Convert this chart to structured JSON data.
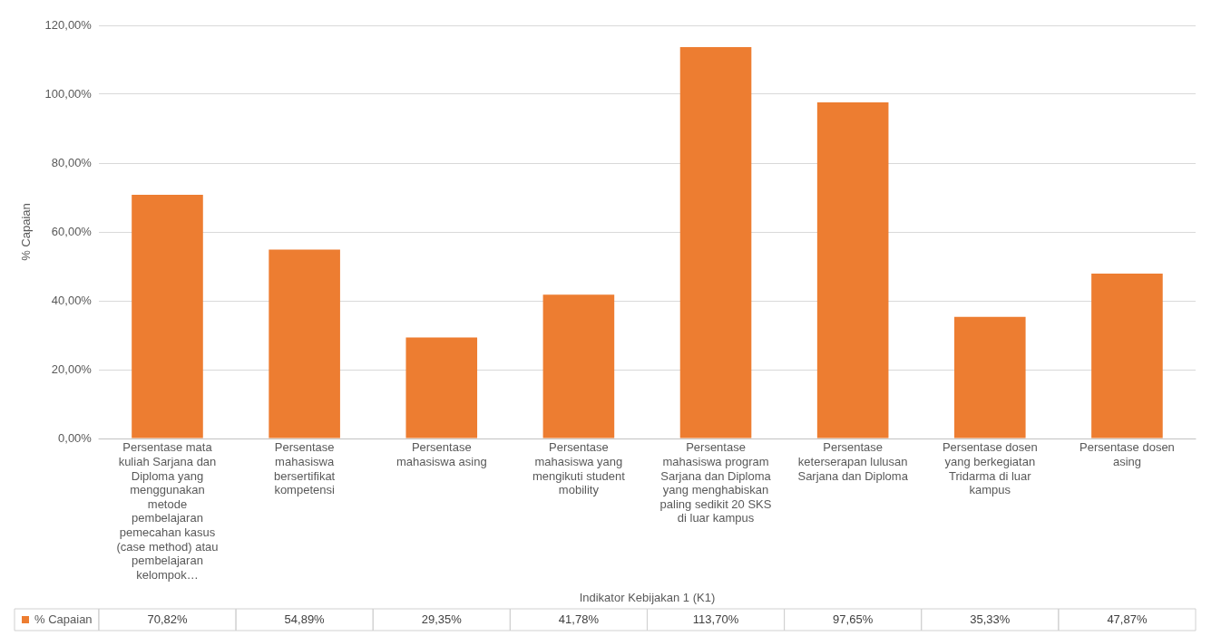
{
  "chart_data": {
    "type": "bar",
    "ylabel": "% Capaian",
    "annotations": [
      "Indikator Kebijakan 1 (K1)"
    ],
    "categories": [
      "Persentase mata kuliah Sarjana dan Diploma yang menggunakan metode pembelajaran pemecahan kasus (case method) atau pembelajaran kelompok…",
      "Persentase mahasiswa bersertifikat kompetensi",
      "Persentase mahasiswa asing",
      "Persentase mahasiswa yang mengikuti student mobility",
      "Persentase mahasiswa program Sarjana dan Diploma yang menghabiskan paling sedikit 20 SKS di luar kampus",
      "Persentase keterserapan lulusan Sarjana dan Diploma",
      "Persentase dosen yang berkegiatan Tridarma di luar kampus",
      "Persentase dosen asing"
    ],
    "series": [
      {
        "name": "% Capaian",
        "color": "#ed7d31",
        "values": [
          70.82,
          54.89,
          29.35,
          41.78,
          113.7,
          97.65,
          35.33,
          47.87
        ],
        "value_labels": [
          "70,82%",
          "54,89%",
          "29,35%",
          "41,78%",
          "113,70%",
          "97,65%",
          "35,33%",
          "47,87%"
        ]
      }
    ],
    "ylim": [
      0,
      120
    ],
    "yticks": [
      {
        "value": 0,
        "label": "0,00%"
      },
      {
        "value": 20,
        "label": "20,00%"
      },
      {
        "value": 40,
        "label": "40,00%"
      },
      {
        "value": 60,
        "label": "60,00%"
      },
      {
        "value": 80,
        "label": "80,00%"
      },
      {
        "value": 100,
        "label": "100,00%"
      },
      {
        "value": 120,
        "label": "120,00%"
      }
    ],
    "grid": "y",
    "legend": "bottom"
  }
}
